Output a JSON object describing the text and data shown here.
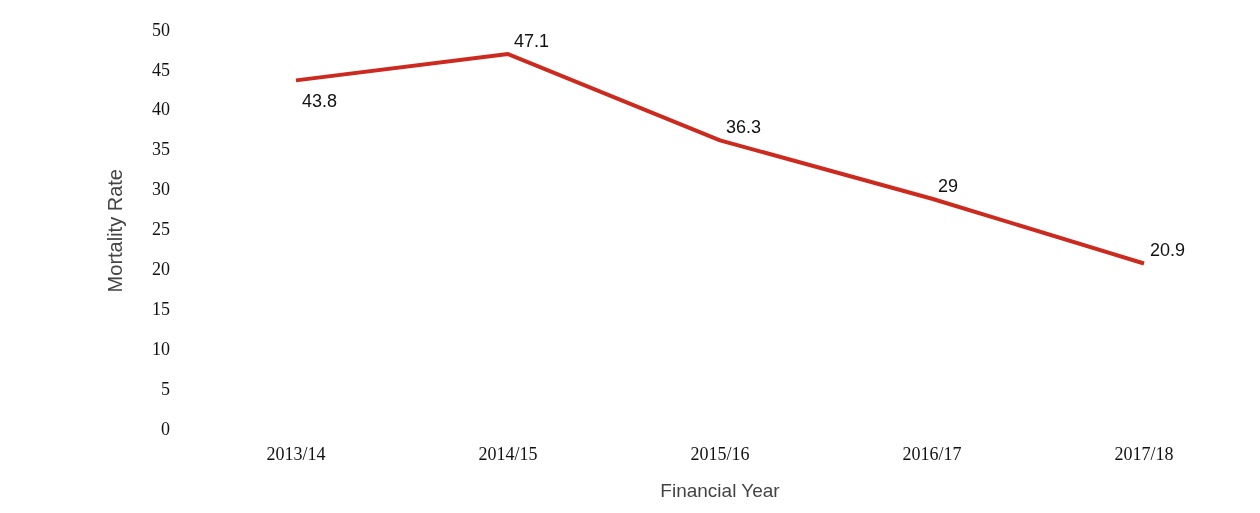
{
  "chart_data": {
    "type": "line",
    "xlabel": "Financial Year",
    "ylabel": "Mortality Rate",
    "categories": [
      "2013/14",
      "2014/15",
      "2015/16",
      "2016/17",
      "2017/18"
    ],
    "series": [
      {
        "color": "#cc2a1e",
        "values": [
          43.8,
          47.1,
          36.3,
          29,
          20.9
        ]
      }
    ],
    "ylim": [
      0,
      50
    ],
    "yticks": [
      0,
      5,
      10,
      15,
      20,
      25,
      30,
      35,
      40,
      45,
      50
    ],
    "grid": false,
    "legend": false,
    "marker": "none",
    "line_style": "solid",
    "data_labels": true
  }
}
